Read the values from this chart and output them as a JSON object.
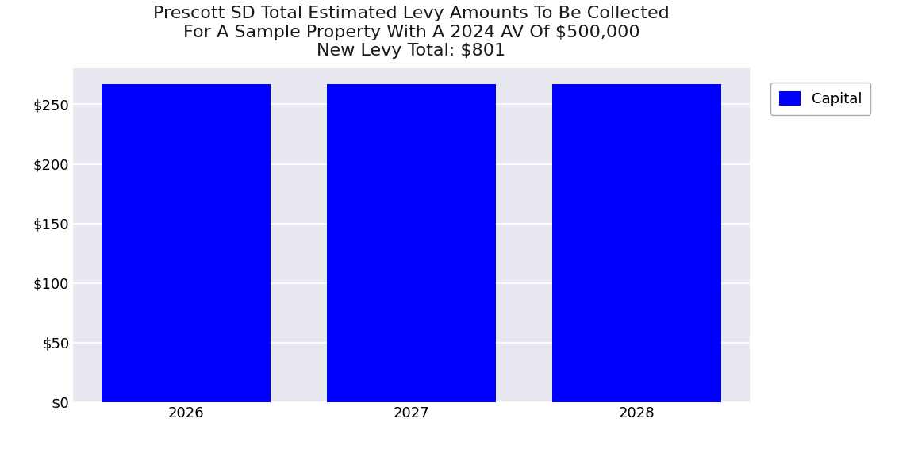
{
  "title_line1": "Prescott SD Total Estimated Levy Amounts To Be Collected",
  "title_line2": "For A Sample Property With A 2024 AV Of $500,000",
  "title_line3": "New Levy Total: $801",
  "categories": [
    "2026",
    "2027",
    "2028"
  ],
  "capital_values": [
    267,
    267,
    267
  ],
  "bar_color": "#0000FF",
  "legend_label": "Capital",
  "ylim": [
    0,
    280
  ],
  "yticks": [
    0,
    50,
    100,
    150,
    200,
    250
  ],
  "plot_bg_color": "#E8E8F0",
  "title_fontsize": 16,
  "tick_fontsize": 13,
  "legend_fontsize": 13,
  "bar_width": 0.75
}
